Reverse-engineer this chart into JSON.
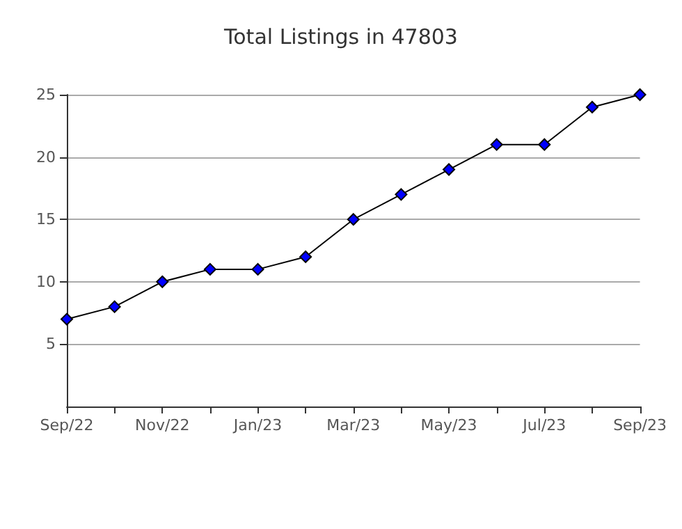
{
  "chart_data": {
    "type": "line",
    "title": "Total Listings in 47803",
    "categories": [
      "Sep/22",
      null,
      "Nov/22",
      null,
      "Jan/23",
      null,
      "Mar/23",
      null,
      "May/23",
      null,
      "Jul/23",
      null,
      "Sep/23"
    ],
    "series": [
      {
        "color": "#0000ff",
        "values": [
          7,
          8,
          10,
          11,
          11,
          12,
          15,
          17,
          19,
          21,
          21,
          24,
          25
        ]
      }
    ],
    "ylim": [
      0,
      25
    ],
    "yticks": [
      5,
      10,
      15,
      20,
      25
    ],
    "grid": "y",
    "marker": "diamond",
    "line_style": "solid"
  }
}
